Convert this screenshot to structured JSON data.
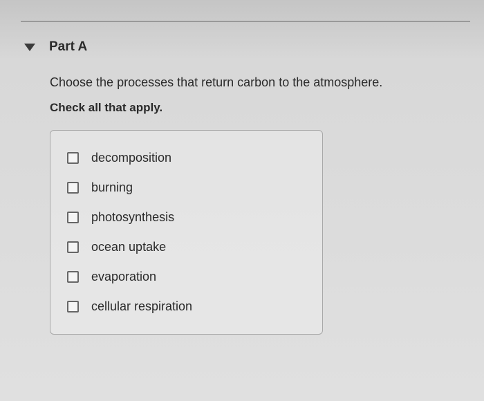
{
  "section": {
    "title": "Part A",
    "question": "Choose the processes that return carbon to the atmosphere.",
    "instruction": "Check all that apply."
  },
  "options": [
    {
      "label": "decomposition",
      "checked": false
    },
    {
      "label": "burning",
      "checked": false
    },
    {
      "label": "photosynthesis",
      "checked": false
    },
    {
      "label": "ocean uptake",
      "checked": false
    },
    {
      "label": "evaporation",
      "checked": false
    },
    {
      "label": "cellular respiration",
      "checked": false
    }
  ],
  "styling": {
    "background_gradient": [
      "#c5c5c5",
      "#d8d8d8",
      "#e0e0e0"
    ],
    "text_color": "#2a2a2a",
    "border_color": "#a8a8a8",
    "checkbox_border": "#666666",
    "title_fontsize": 19,
    "body_fontsize": 18,
    "options_box_width": 395
  }
}
